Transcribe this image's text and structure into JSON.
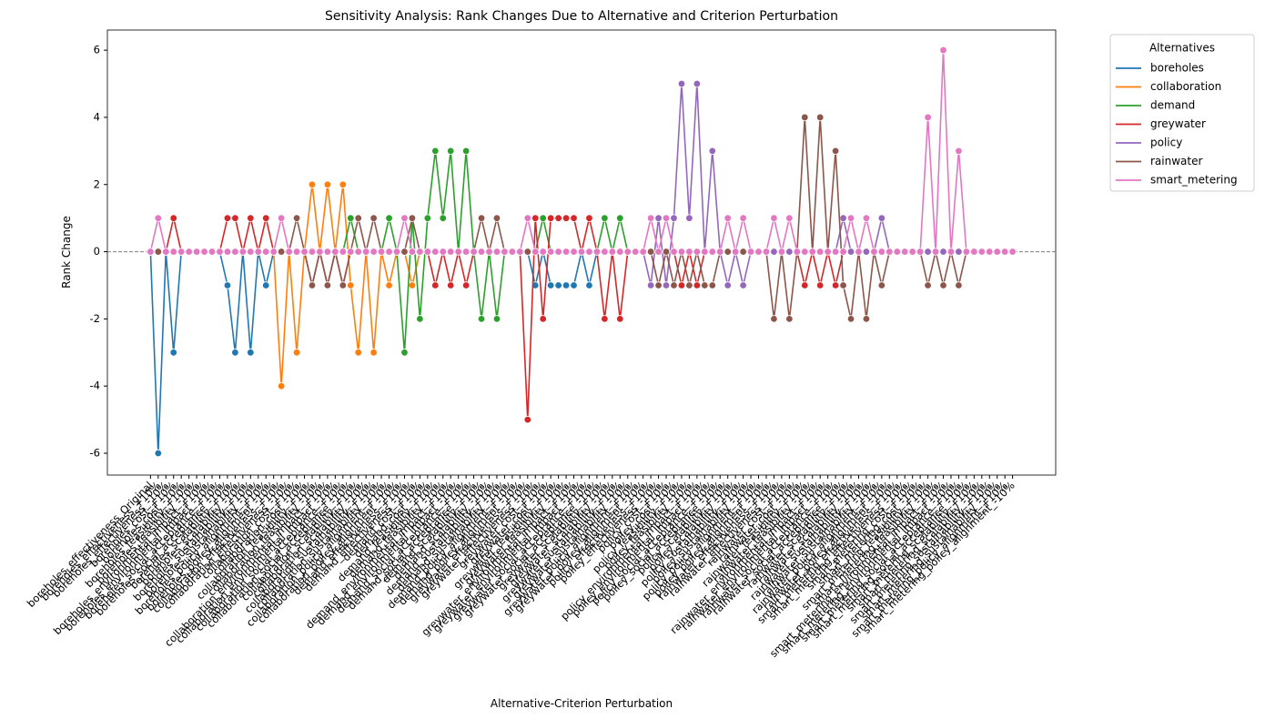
{
  "chart_data": {
    "type": "line",
    "title": "Sensitivity Analysis: Rank Changes Due to Alternative and Criterion Perturbation",
    "x_label": "Alternative-Criterion Perturbation",
    "y_label": "Rank Change",
    "legend_title": "Alternatives",
    "legend_position": "outside upper right",
    "ylim": [
      -6.65,
      6.6
    ],
    "yticks": [
      -6,
      -4,
      -2,
      0,
      2,
      4,
      6
    ],
    "categories": [
      "boreholes_effectiveness_Original",
      "boreholes_effectiveness_+10%",
      "boreholes_effectiveness_-10%",
      "boreholes_cost_+10%",
      "boreholes_cost_-10%",
      "boreholes_feasibility_+10%",
      "boreholes_feasibility_-10%",
      "boreholes_environmental_impact_+10%",
      "boreholes_environmental_impact_-10%",
      "boreholes_social_acceptance_+10%",
      "boreholes_social_acceptance_-10%",
      "boreholes_scalability_+10%",
      "boreholes_scalability_-10%",
      "boreholes_sustainability_+10%",
      "boreholes_sustainability_-10%",
      "boreholes_policy_alignment_+10%",
      "boreholes_policy_alignment_-10%",
      "collaboration_effectiveness_+10%",
      "collaboration_effectiveness_-10%",
      "collaboration_cost_+10%",
      "collaboration_cost_-10%",
      "collaboration_feasibility_+10%",
      "collaboration_feasibility_-10%",
      "collaboration_environmental_impact_+10%",
      "collaboration_environmental_impact_-10%",
      "collaboration_social_acceptance_+10%",
      "collaboration_social_acceptance_-10%",
      "collaboration_scalability_+10%",
      "collaboration_scalability_-10%",
      "collaboration_sustainability_+10%",
      "collaboration_sustainability_-10%",
      "collaboration_policy_alignment_+10%",
      "collaboration_policy_alignment_-10%",
      "demand_effectiveness_+10%",
      "demand_effectiveness_-10%",
      "demand_cost_+10%",
      "demand_cost_-10%",
      "demand_feasibility_+10%",
      "demand_feasibility_-10%",
      "demand_environmental_impact_+10%",
      "demand_environmental_impact_-10%",
      "demand_social_acceptance_+10%",
      "demand_social_acceptance_-10%",
      "demand_scalability_+10%",
      "demand_scalability_-10%",
      "demand_sustainability_+10%",
      "demand_sustainability_-10%",
      "demand_policy_alignment_+10%",
      "demand_policy_alignment_-10%",
      "greywater_effectiveness_+10%",
      "greywater_effectiveness_-10%",
      "greywater_cost_+10%",
      "greywater_cost_-10%",
      "greywater_feasibility_+10%",
      "greywater_feasibility_-10%",
      "greywater_environmental_impact_+10%",
      "greywater_environmental_impact_-10%",
      "greywater_social_acceptance_+10%",
      "greywater_social_acceptance_-10%",
      "greywater_scalability_+10%",
      "greywater_scalability_-10%",
      "greywater_sustainability_+10%",
      "greywater_sustainability_-10%",
      "greywater_policy_alignment_+10%",
      "greywater_policy_alignment_-10%",
      "policy_effectiveness_+10%",
      "policy_effectiveness_-10%",
      "policy_cost_+10%",
      "policy_cost_-10%",
      "policy_feasibility_+10%",
      "policy_feasibility_-10%",
      "policy_environmental_impact_+10%",
      "policy_environmental_impact_-10%",
      "policy_social_acceptance_+10%",
      "policy_social_acceptance_-10%",
      "policy_scalability_+10%",
      "policy_scalability_-10%",
      "policy_sustainability_+10%",
      "policy_sustainability_-10%",
      "policy_policy_alignment_+10%",
      "policy_policy_alignment_-10%",
      "rainwater_effectiveness_+10%",
      "rainwater_effectiveness_-10%",
      "rainwater_cost_+10%",
      "rainwater_cost_-10%",
      "rainwater_feasibility_+10%",
      "rainwater_feasibility_-10%",
      "rainwater_environmental_impact_+10%",
      "rainwater_environmental_impact_-10%",
      "rainwater_social_acceptance_+10%",
      "rainwater_social_acceptance_-10%",
      "rainwater_scalability_+10%",
      "rainwater_scalability_-10%",
      "rainwater_sustainability_+10%",
      "rainwater_sustainability_-10%",
      "rainwater_policy_alignment_+10%",
      "rainwater_policy_alignment_-10%",
      "smart_metering_effectiveness_+10%",
      "smart_metering_effectiveness_-10%",
      "smart_metering_cost_+10%",
      "smart_metering_cost_-10%",
      "smart_metering_feasibility_+10%",
      "smart_metering_feasibility_-10%",
      "smart_metering_environmental_impact_+10%",
      "smart_metering_environmental_impact_-10%",
      "smart_metering_social_acceptance_+10%",
      "smart_metering_social_acceptance_-10%",
      "smart_metering_scalability_+10%",
      "smart_metering_scalability_-10%",
      "smart_metering_sustainability_+10%",
      "smart_metering_sustainability_-10%",
      "smart_metering_policy_alignment_+10%",
      "smart_metering_policy_alignment_-10%"
    ],
    "series": [
      {
        "name": "boreholes",
        "color": "#1f77b4",
        "values": [
          0,
          -6,
          0,
          -3,
          0,
          0,
          0,
          0,
          0,
          0,
          -1,
          -3,
          0,
          -3,
          0,
          -1,
          0,
          0,
          0,
          0,
          0,
          0,
          0,
          0,
          0,
          0,
          0,
          0,
          0,
          0,
          0,
          0,
          0,
          0,
          0,
          0,
          0,
          0,
          0,
          0,
          0,
          0,
          0,
          0,
          0,
          0,
          0,
          0,
          0,
          0,
          -1,
          0,
          -1,
          -1,
          -1,
          -1,
          0,
          -1,
          0,
          0,
          0,
          0,
          0,
          0,
          0,
          0,
          0,
          0,
          0,
          0,
          0,
          0,
          0,
          0,
          0,
          0,
          0,
          0,
          0,
          0,
          0,
          0,
          0,
          0,
          0,
          0,
          0,
          0,
          0,
          0,
          0,
          0,
          0,
          0,
          0,
          0,
          0,
          0,
          0,
          0,
          0,
          0,
          0,
          0,
          0,
          0,
          0,
          0,
          0,
          0,
          0,
          0,
          0
        ]
      },
      {
        "name": "collaboration",
        "color": "#ff7f0e",
        "values": [
          0,
          0,
          0,
          0,
          0,
          0,
          0,
          0,
          0,
          0,
          0,
          0,
          0,
          0,
          0,
          0,
          0,
          -4,
          0,
          -3,
          0,
          2,
          0,
          2,
          0,
          2,
          -1,
          -3,
          0,
          -3,
          0,
          -1,
          0,
          0,
          -1,
          0,
          0,
          0,
          0,
          0,
          0,
          0,
          0,
          0,
          0,
          0,
          0,
          0,
          0,
          0,
          0,
          0,
          0,
          0,
          0,
          0,
          0,
          0,
          0,
          0,
          0,
          0,
          0,
          0,
          0,
          0,
          0,
          0,
          0,
          0,
          0,
          0,
          0,
          0,
          0,
          0,
          0,
          0,
          0,
          0,
          0,
          0,
          0,
          0,
          0,
          0,
          0,
          0,
          0,
          0,
          0,
          0,
          0,
          0,
          0,
          0,
          0,
          0,
          0,
          0,
          0,
          0,
          0,
          0,
          0,
          0,
          0,
          0,
          0,
          0,
          0,
          0,
          0
        ]
      },
      {
        "name": "demand",
        "color": "#2ca02c",
        "values": [
          0,
          0,
          0,
          0,
          0,
          0,
          0,
          0,
          0,
          0,
          0,
          0,
          0,
          0,
          0,
          0,
          0,
          0,
          0,
          0,
          0,
          0,
          0,
          0,
          0,
          0,
          1,
          0,
          0,
          0,
          0,
          1,
          0,
          -3,
          1,
          -2,
          1,
          3,
          1,
          3,
          0,
          3,
          0,
          -2,
          0,
          -2,
          0,
          0,
          0,
          0,
          0,
          1,
          0,
          0,
          0,
          0,
          0,
          0,
          0,
          1,
          0,
          1,
          0,
          0,
          0,
          0,
          0,
          0,
          0,
          0,
          0,
          0,
          0,
          0,
          0,
          0,
          0,
          0,
          0,
          0,
          0,
          0,
          0,
          0,
          0,
          0,
          0,
          0,
          0,
          0,
          0,
          0,
          0,
          0,
          0,
          0,
          0,
          0,
          0,
          0,
          0,
          0,
          0,
          0,
          0,
          0,
          0,
          0,
          0,
          0,
          0,
          0,
          0
        ]
      },
      {
        "name": "greywater",
        "color": "#d62728",
        "values": [
          0,
          0,
          0,
          1,
          0,
          0,
          0,
          0,
          0,
          0,
          1,
          1,
          0,
          1,
          0,
          1,
          0,
          0,
          0,
          0,
          0,
          -1,
          0,
          -1,
          0,
          -1,
          0,
          0,
          0,
          0,
          0,
          0,
          0,
          0,
          0,
          0,
          0,
          -1,
          0,
          -1,
          0,
          -1,
          0,
          0,
          0,
          0,
          0,
          0,
          0,
          -5,
          1,
          -2,
          1,
          1,
          1,
          1,
          0,
          1,
          0,
          -2,
          0,
          -2,
          0,
          0,
          0,
          0,
          0,
          0,
          0,
          -1,
          0,
          -1,
          0,
          0,
          0,
          0,
          0,
          0,
          0,
          0,
          0,
          0,
          0,
          0,
          0,
          -1,
          0,
          -1,
          0,
          -1,
          0,
          0,
          0,
          0,
          0,
          0,
          0,
          0,
          0,
          0,
          0,
          0,
          0,
          0,
          0,
          0,
          0,
          0,
          0,
          0,
          0,
          0,
          0
        ]
      },
      {
        "name": "policy",
        "color": "#9467bd",
        "values": [
          0,
          0,
          0,
          0,
          0,
          0,
          0,
          0,
          0,
          0,
          0,
          0,
          0,
          0,
          0,
          0,
          0,
          0,
          0,
          0,
          0,
          0,
          0,
          0,
          0,
          0,
          0,
          0,
          0,
          0,
          0,
          0,
          0,
          0,
          0,
          0,
          0,
          0,
          0,
          0,
          0,
          0,
          0,
          0,
          0,
          0,
          0,
          0,
          0,
          0,
          0,
          0,
          0,
          0,
          0,
          0,
          0,
          0,
          0,
          0,
          0,
          0,
          0,
          0,
          0,
          -1,
          1,
          -1,
          1,
          5,
          1,
          5,
          0,
          3,
          0,
          -1,
          0,
          -1,
          0,
          0,
          0,
          0,
          0,
          0,
          0,
          0,
          0,
          0,
          0,
          0,
          1,
          0,
          0,
          0,
          0,
          1,
          0,
          0,
          0,
          0,
          0,
          0,
          0,
          0,
          0,
          0,
          0,
          0,
          0,
          0,
          0,
          0,
          0
        ]
      },
      {
        "name": "rainwater",
        "color": "#8c564b",
        "values": [
          0,
          0,
          0,
          0,
          0,
          0,
          0,
          0,
          0,
          0,
          0,
          0,
          0,
          0,
          0,
          0,
          0,
          0,
          0,
          1,
          0,
          -1,
          0,
          -1,
          0,
          -1,
          0,
          1,
          0,
          1,
          0,
          0,
          0,
          0,
          1,
          0,
          0,
          0,
          0,
          0,
          0,
          0,
          0,
          1,
          0,
          1,
          0,
          0,
          0,
          0,
          0,
          0,
          0,
          0,
          0,
          0,
          0,
          0,
          0,
          0,
          0,
          0,
          0,
          0,
          0,
          0,
          -1,
          0,
          -1,
          0,
          -1,
          0,
          -1,
          -1,
          0,
          0,
          0,
          0,
          0,
          0,
          0,
          -2,
          0,
          -2,
          0,
          4,
          0,
          4,
          0,
          3,
          -1,
          -2,
          0,
          -2,
          0,
          -1,
          0,
          0,
          0,
          0,
          0,
          -1,
          0,
          -1,
          0,
          -1,
          0,
          0,
          0,
          0,
          0,
          0,
          0
        ]
      },
      {
        "name": "smart_metering",
        "color": "#e377c2",
        "values": [
          0,
          1,
          0,
          0,
          0,
          0,
          0,
          0,
          0,
          0,
          0,
          0,
          0,
          0,
          0,
          0,
          0,
          1,
          0,
          0,
          0,
          0,
          0,
          0,
          0,
          0,
          0,
          0,
          0,
          0,
          0,
          0,
          0,
          1,
          0,
          0,
          0,
          0,
          0,
          0,
          0,
          0,
          0,
          0,
          0,
          0,
          0,
          0,
          0,
          1,
          0,
          0,
          0,
          0,
          0,
          0,
          0,
          0,
          0,
          0,
          0,
          0,
          0,
          0,
          0,
          1,
          0,
          1,
          0,
          0,
          0,
          0,
          0,
          0,
          0,
          1,
          0,
          1,
          0,
          0,
          0,
          1,
          0,
          1,
          0,
          0,
          0,
          0,
          0,
          0,
          0,
          1,
          0,
          1,
          0,
          0,
          0,
          0,
          0,
          0,
          0,
          4,
          0,
          6,
          0,
          3,
          0,
          0,
          0,
          0,
          0,
          0,
          0
        ]
      }
    ]
  }
}
